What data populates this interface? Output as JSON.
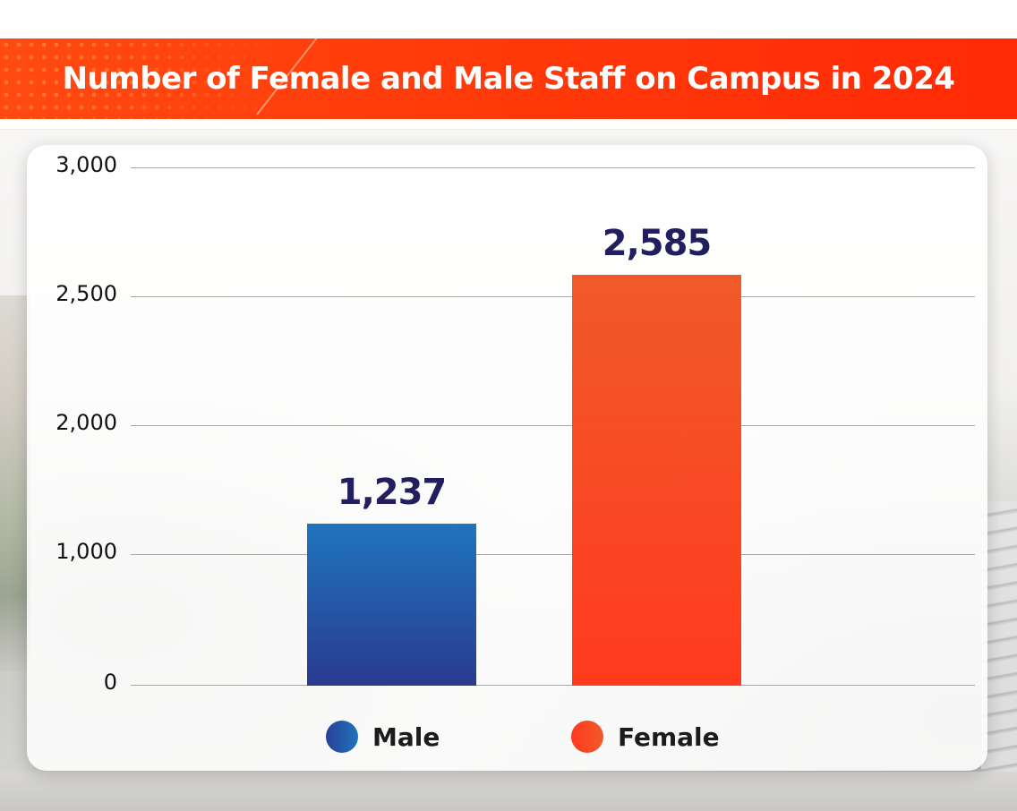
{
  "banner": {
    "title": "Number of Female and Male Staff on Campus in 2024"
  },
  "colors": {
    "banner": "#ff3a0a",
    "male_top": "#1f74bd",
    "male_bottom": "#2a3a90",
    "female_top": "#f05a2a",
    "female_bottom": "#ff3a1e",
    "value_label": "#231f5e",
    "gridline": "#a8a8a8"
  },
  "chart_data": {
    "type": "bar",
    "title": "Number of Female and Male Staff on Campus in 2024",
    "categories": [
      "Male",
      "Female"
    ],
    "values": [
      1237,
      2585
    ],
    "value_labels": [
      "1,237",
      "2,585"
    ],
    "xlabel": "",
    "ylabel": "",
    "ylim": [
      0,
      3000
    ],
    "yticks": [
      0,
      1000,
      2000,
      2500,
      3000
    ],
    "ytick_labels": [
      "0",
      "1,000",
      "2,000",
      "2,500",
      "3,000"
    ],
    "grid": true,
    "legend": {
      "position": "bottom",
      "entries": [
        "Male",
        "Female"
      ]
    }
  }
}
